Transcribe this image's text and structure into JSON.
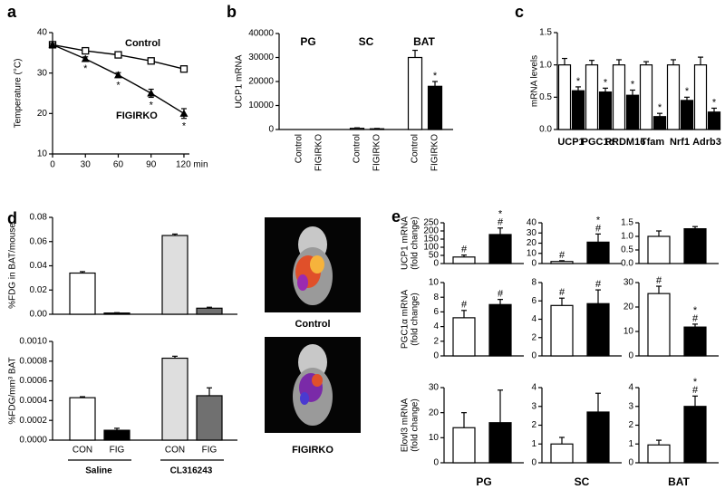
{
  "chart_data": [
    {
      "panel": "a",
      "type": "line",
      "ylabel": "Temperature (°C)",
      "x": [
        0,
        30,
        60,
        90,
        120
      ],
      "xlim": [
        0,
        125
      ],
      "xticks": [
        0,
        30,
        60,
        90,
        {
          "value": 120,
          "label": "120 min"
        }
      ],
      "ylim": [
        10,
        40
      ],
      "yticks": [
        10,
        20,
        30,
        40
      ],
      "series": [
        {
          "name": "Control",
          "color": "#000000",
          "marker": "open-square",
          "values": [
            37,
            35.5,
            34.5,
            33,
            31
          ],
          "errors": [
            0.3,
            0.3,
            0.3,
            0.3,
            0.4
          ]
        },
        {
          "name": "FIGIRKO",
          "color": "#000000",
          "marker": "filled-triangle",
          "values": [
            37,
            33.5,
            29.5,
            25,
            20
          ],
          "errors": [
            0.3,
            0.5,
            0.6,
            1.0,
            1.2
          ],
          "annotations": [
            null,
            [
              "*"
            ],
            [
              "*"
            ],
            [
              "*"
            ],
            [
              "*"
            ]
          ]
        }
      ]
    },
    {
      "panel": "b",
      "type": "bar",
      "ylabel": "UCP1 mRNA",
      "categories": [
        "PG",
        "SC",
        "BAT"
      ],
      "ylim": [
        0,
        40000
      ],
      "yticks": [
        0,
        10000,
        20000,
        30000,
        40000
      ],
      "series": [
        {
          "name": "Control",
          "color": "#ffffff",
          "values": [
            0,
            500,
            30000
          ],
          "errors": [
            0,
            200,
            3000
          ]
        },
        {
          "name": "FIGIRKO",
          "color": "#000000",
          "values": [
            0,
            300,
            18000
          ],
          "errors": [
            0,
            150,
            2000
          ],
          "annotations": [
            null,
            null,
            [
              "*"
            ]
          ]
        }
      ]
    },
    {
      "panel": "c",
      "type": "bar",
      "ylabel": "mRNA levels",
      "categories": [
        "UCP1",
        "PGC1α",
        "PRDM16",
        "Tfam",
        "Nrf1",
        "Adrb3"
      ],
      "ylim": [
        0,
        1.5
      ],
      "yticks": [
        {
          "value": 0,
          "label": "0.0"
        },
        {
          "value": 0.5,
          "label": "0.5"
        },
        {
          "value": 1,
          "label": "1.0"
        },
        {
          "value": 1.5,
          "label": "1.5"
        }
      ],
      "series": [
        {
          "color": "#ffffff",
          "values": [
            1,
            1,
            1,
            1,
            1,
            1
          ],
          "errors": [
            0.1,
            0.07,
            0.08,
            0.05,
            0.08,
            0.12
          ]
        },
        {
          "color": "#000000",
          "values": [
            0.6,
            0.58,
            0.53,
            0.2,
            0.45,
            0.27
          ],
          "errors": [
            0.06,
            0.06,
            0.08,
            0.05,
            0.05,
            0.06
          ],
          "annotations": [
            [
              "*"
            ],
            [
              "*"
            ],
            [
              "*"
            ],
            [
              "*"
            ],
            [
              "*"
            ],
            [
              "*"
            ]
          ]
        }
      ]
    },
    {
      "panel": "d",
      "type": "bar",
      "ylabel": "%FDG in BAT/mouse",
      "ylim": [
        0,
        0.08
      ],
      "yticks": [
        {
          "value": 0,
          "label": "0.00"
        },
        {
          "value": 0.02,
          "label": "0.02"
        },
        {
          "value": 0.04,
          "label": "0.04"
        },
        {
          "value": 0.06,
          "label": "0.06"
        },
        {
          "value": 0.08,
          "label": "0.08"
        }
      ],
      "series": [
        {
          "colors": [
            "#ffffff",
            "#dedede"
          ],
          "values": [
            0.034,
            0.065
          ],
          "errors": [
            0.0012,
            0.0012
          ]
        },
        {
          "colors": [
            "#000000",
            "#707070"
          ],
          "values": [
            0.001,
            0.005
          ],
          "errors": [
            0.0003,
            0.0008
          ]
        }
      ]
    },
    {
      "type": "bar",
      "ylabel": "%FDG/mm³ BAT",
      "categories": [
        "Saline",
        "CL316243"
      ],
      "ylim": [
        0,
        0.001
      ],
      "yticks": [
        {
          "value": 0,
          "label": "0.0000"
        },
        {
          "value": 0.0002,
          "label": "0.0002"
        },
        {
          "value": 0.0004,
          "label": "0.0004"
        },
        {
          "value": 0.0006,
          "label": "0.0006"
        },
        {
          "value": 0.0008,
          "label": "0.0008"
        },
        {
          "value": 0.001,
          "label": "0.0010"
        }
      ],
      "series": [
        {
          "name": "CON",
          "colors": [
            "#ffffff",
            "#dedede"
          ],
          "values": [
            0.00043,
            0.00083
          ],
          "errors": [
            1e-05,
            2e-05
          ]
        },
        {
          "name": "FIG",
          "colors": [
            "#000000",
            "#707070"
          ],
          "values": [
            0.0001,
            0.00045
          ],
          "errors": [
            2e-05,
            8e-05
          ]
        }
      ]
    },
    {
      "panel": "e",
      "type": "bar",
      "ylabel": [
        "UCP1 mRNA",
        "(fold change)"
      ],
      "ylim": [
        0,
        250
      ],
      "yticks": [
        0,
        50,
        100,
        150,
        200,
        250
      ],
      "colors": [
        "#ffffff",
        "#000000"
      ],
      "values": [
        40,
        178
      ],
      "errors": [
        12,
        40
      ],
      "annotations": [
        [
          "#"
        ],
        [
          "*",
          "#"
        ]
      ]
    },
    {
      "type": "bar",
      "ylim": [
        0,
        40
      ],
      "yticks": [
        0,
        10,
        20,
        30,
        40
      ],
      "colors": [
        "#ffffff",
        "#000000"
      ],
      "values": [
        2,
        21
      ],
      "errors": [
        0.8,
        8
      ],
      "annotations": [
        [
          "#"
        ],
        [
          "*",
          "#"
        ]
      ]
    },
    {
      "type": "bar",
      "ylim": [
        0,
        1.5
      ],
      "yticks": [
        {
          "value": 0,
          "label": "0.0"
        },
        {
          "value": 0.5,
          "label": "0.5"
        },
        {
          "value": 1,
          "label": "1.0"
        },
        {
          "value": 1.5,
          "label": "1.5"
        }
      ],
      "colors": [
        "#ffffff",
        "#000000"
      ],
      "values": [
        1.0,
        1.28
      ],
      "errors": [
        0.2,
        0.08
      ]
    },
    {
      "type": "bar",
      "ylabel": [
        "PGC1α mRNA",
        "(fold change)"
      ],
      "ylim": [
        0,
        10
      ],
      "yticks": [
        0,
        2,
        4,
        6,
        8,
        10
      ],
      "colors": [
        "#ffffff",
        "#000000"
      ],
      "values": [
        5.2,
        7.0
      ],
      "errors": [
        1.0,
        0.7
      ],
      "annotations": [
        [
          "#"
        ],
        [
          "#"
        ]
      ]
    },
    {
      "type": "bar",
      "ylim": [
        0,
        8
      ],
      "yticks": [
        0,
        2,
        4,
        6,
        8
      ],
      "colors": [
        "#ffffff",
        "#000000"
      ],
      "values": [
        5.5,
        5.7
      ],
      "errors": [
        0.8,
        1.5
      ],
      "annotations": [
        [
          "#"
        ],
        [
          "#"
        ]
      ]
    },
    {
      "type": "bar",
      "ylim": [
        0,
        30
      ],
      "yticks": [
        0,
        10,
        20,
        30
      ],
      "colors": [
        "#ffffff",
        "#000000"
      ],
      "values": [
        25.5,
        11.8
      ],
      "errors": [
        3,
        1.2
      ],
      "annotations": [
        [
          "#"
        ],
        [
          "*",
          "#"
        ]
      ]
    },
    {
      "type": "bar",
      "ylabel": [
        "Elovl3 mRNA",
        "(fold change)"
      ],
      "xlabel": "PG",
      "ylim": [
        0,
        30
      ],
      "yticks": [
        0,
        10,
        20,
        30
      ],
      "colors": [
        "#ffffff",
        "#000000"
      ],
      "values": [
        14,
        16
      ],
      "errors": [
        6,
        13
      ]
    },
    {
      "type": "bar",
      "xlabel": "SC",
      "ylim": [
        0,
        4
      ],
      "yticks": [
        0,
        1,
        2,
        3,
        4
      ],
      "colors": [
        "#ffffff",
        "#000000"
      ],
      "values": [
        1.0,
        2.7
      ],
      "errors": [
        0.35,
        1.0
      ]
    },
    {
      "type": "bar",
      "xlabel": "BAT",
      "ylim": [
        0,
        4
      ],
      "yticks": [
        0,
        1,
        2,
        3,
        4
      ],
      "colors": [
        "#ffffff",
        "#000000"
      ],
      "values": [
        0.95,
        3.0
      ],
      "errors": [
        0.25,
        0.55
      ],
      "annotations": [
        null,
        [
          "*",
          "#"
        ]
      ]
    }
  ],
  "images": [
    {
      "caption": "Control"
    },
    {
      "caption": "FIGIRKO"
    }
  ]
}
